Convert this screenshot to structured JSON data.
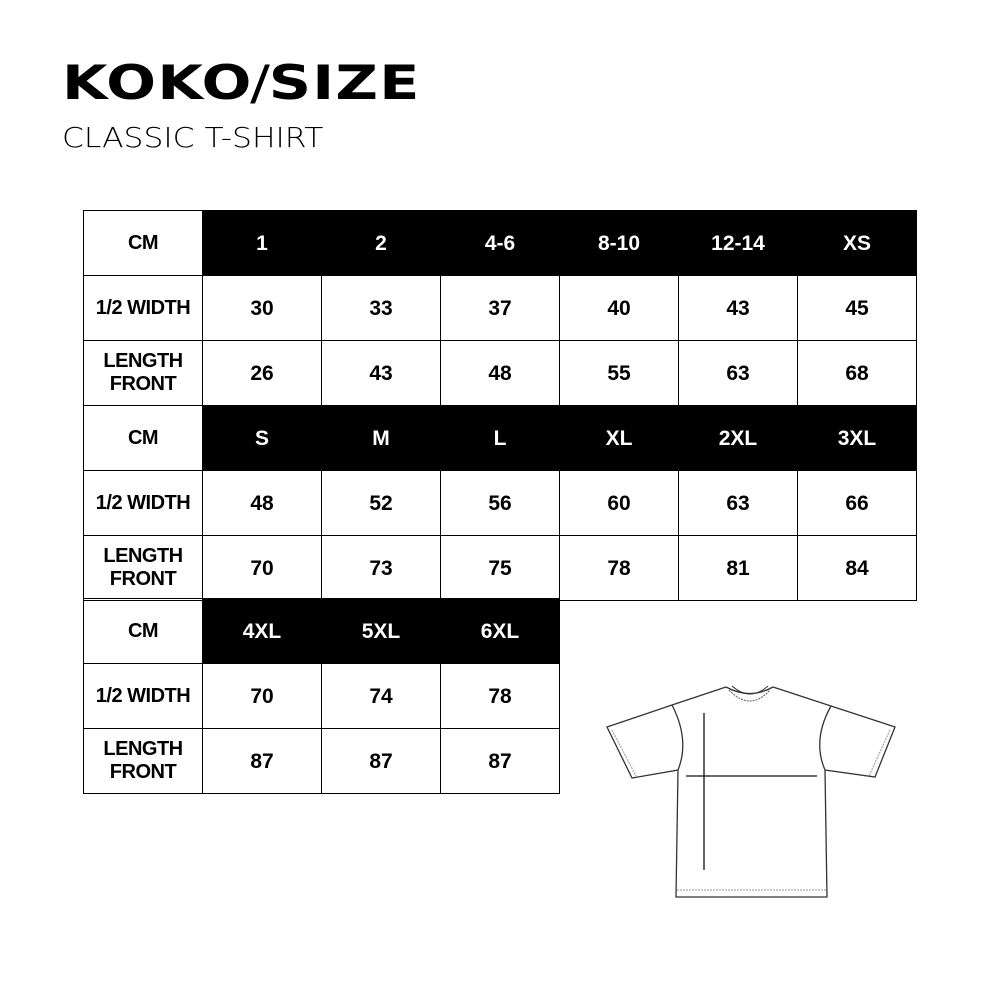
{
  "header": {
    "brand_left": "KOKO",
    "brand_sep": "/",
    "brand_right": "SIZE",
    "subtitle": "CLASSIC T-SHIRT"
  },
  "tables": [
    {
      "unit": "CM",
      "sizes": [
        "1",
        "2",
        "4-6",
        "8-10",
        "12-14",
        "XS"
      ],
      "rows": [
        {
          "label": [
            "1/2 WIDTH"
          ],
          "values": [
            "30",
            "33",
            "37",
            "40",
            "43",
            "45"
          ]
        },
        {
          "label": [
            "LENGTH",
            "FRONT"
          ],
          "values": [
            "26",
            "43",
            "48",
            "55",
            "63",
            "68"
          ]
        }
      ]
    },
    {
      "unit": "CM",
      "sizes": [
        "S",
        "M",
        "L",
        "XL",
        "2XL",
        "3XL"
      ],
      "rows": [
        {
          "label": [
            "1/2 WIDTH"
          ],
          "values": [
            "48",
            "52",
            "56",
            "60",
            "63",
            "66"
          ]
        },
        {
          "label": [
            "LENGTH",
            "FRONT"
          ],
          "values": [
            "70",
            "73",
            "75",
            "78",
            "81",
            "84"
          ]
        }
      ]
    },
    {
      "unit": "CM",
      "sizes": [
        "4XL",
        "5XL",
        "6XL"
      ],
      "rows": [
        {
          "label": [
            "1/2 WIDTH"
          ],
          "values": [
            "70",
            "74",
            "78"
          ]
        },
        {
          "label": [
            "LENGTH",
            "FRONT"
          ],
          "values": [
            "87",
            "87",
            "87"
          ]
        }
      ]
    }
  ],
  "illustration": {
    "icon": "t-shirt-measurement-diagram"
  }
}
